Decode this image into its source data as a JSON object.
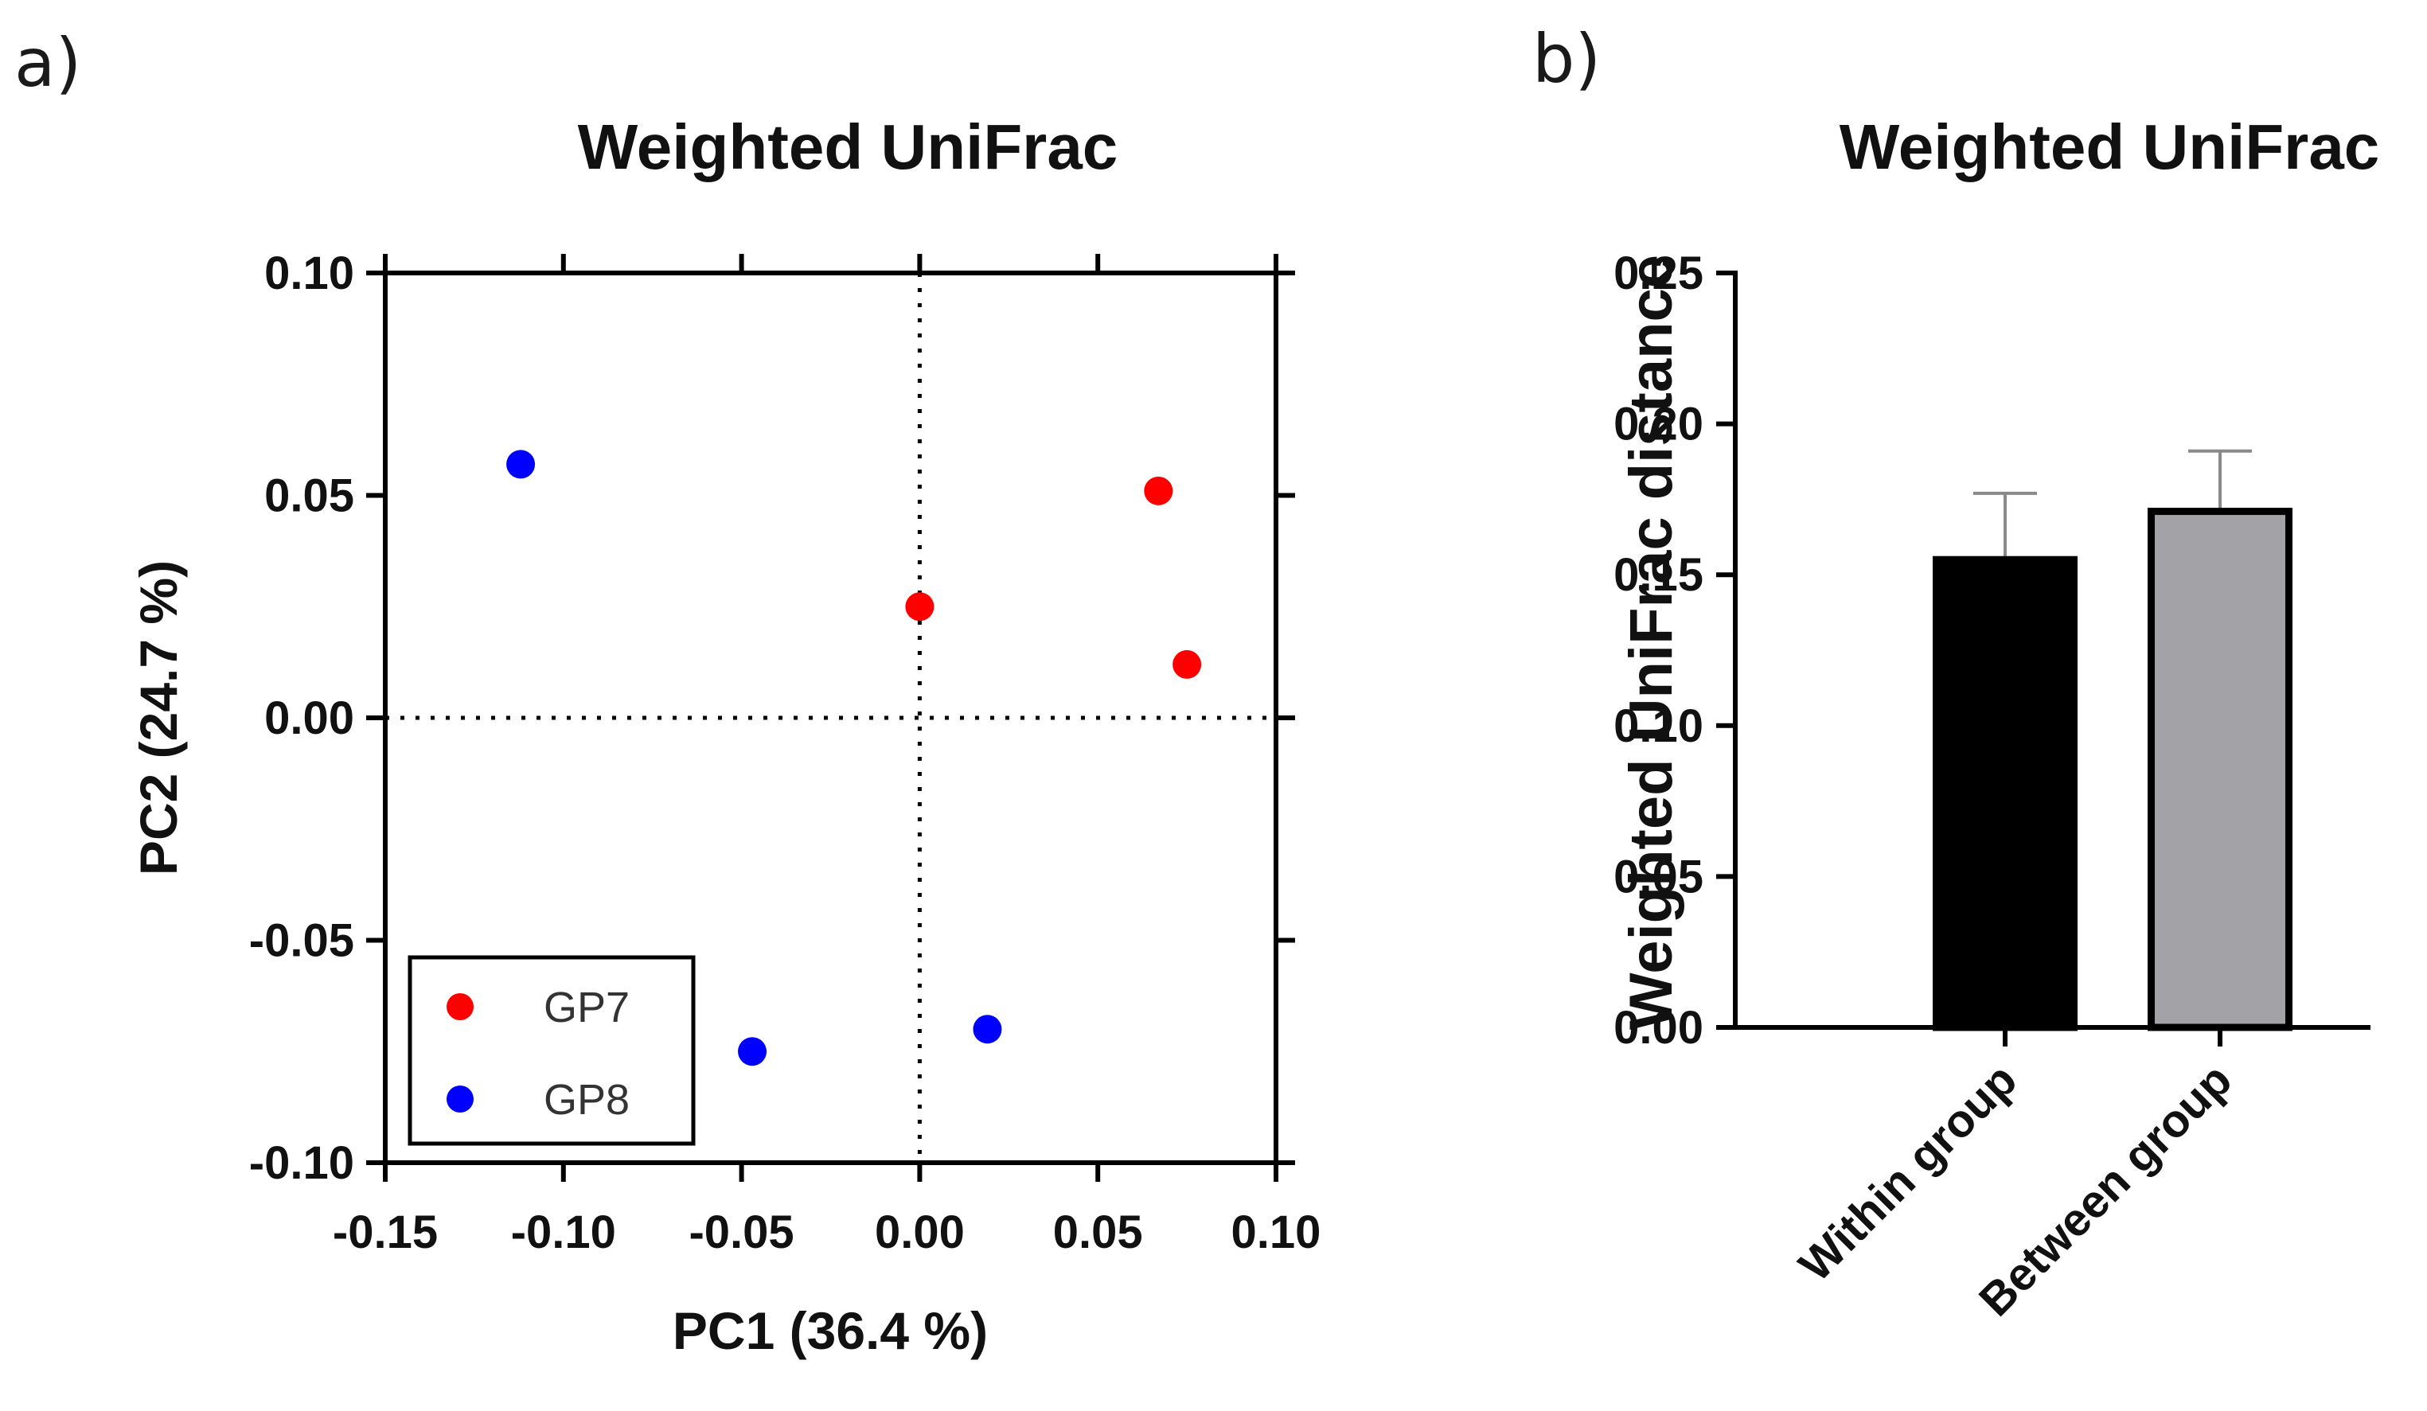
{
  "panel_labels": {
    "a": "a)",
    "b": "b)"
  },
  "chart_data": [
    {
      "type": "scatter",
      "title": "Weighted UniFrac",
      "xlabel": "PC1 (36.4 %)",
      "ylabel": "PC2 (24.7 %)",
      "xlim": [
        -0.15,
        0.1
      ],
      "ylim": [
        -0.1,
        0.1
      ],
      "xticks": [
        "-0.15",
        "-0.10",
        "-0.05",
        "0.00",
        "0.05",
        "0.10"
      ],
      "yticks": [
        "0.10",
        "0.05",
        "0.00",
        "-0.05",
        "-0.10"
      ],
      "reference_lines": {
        "x0": true,
        "y0": true,
        "style": "dotted"
      },
      "legend_position": "bottom-left",
      "series": [
        {
          "name": "GP7",
          "color": "#ff0000",
          "points": [
            [
              0.0,
              0.025
            ],
            [
              0.067,
              0.051
            ],
            [
              0.075,
              0.012
            ]
          ]
        },
        {
          "name": "GP8",
          "color": "#0000ff",
          "points": [
            [
              -0.112,
              0.057
            ],
            [
              -0.047,
              -0.075
            ],
            [
              0.019,
              -0.07
            ]
          ]
        }
      ]
    },
    {
      "type": "bar",
      "title": "Weighted UniFrac",
      "ylabel": "Weighted UniFrac distance",
      "categories": [
        "Within group",
        "Between group"
      ],
      "values": [
        0.155,
        0.171
      ],
      "errors": [
        0.022,
        0.02
      ],
      "colors": [
        "#000000",
        "#a3a2a7"
      ],
      "ylim": [
        0,
        0.25
      ],
      "yticks": [
        "0.25",
        "0.20",
        "0.15",
        "0.10",
        "0.05",
        "0.00"
      ]
    }
  ]
}
